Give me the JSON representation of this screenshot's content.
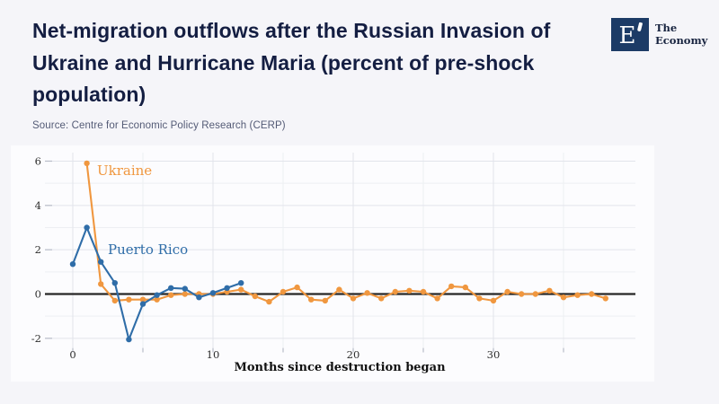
{
  "header": {
    "title": "Net-migration outflows after the Russian Invasion of Ukraine and Hurricane Maria (percent of pre-shock population)",
    "source": "Source: Centre for Economic Policy Research (CERP)",
    "logo": {
      "monogram": "E",
      "name": "The\nEconomy"
    }
  },
  "colors": {
    "title_text": "#141e42",
    "source_text": "#545b76",
    "logo_navy": "#1c3b66",
    "page_background": "#f5f5f9",
    "panel_background": "#fcfcfe",
    "ukraine_orange": "#F0973F",
    "puerto_rico_blue": "#2F6DA8",
    "zero_line_black": "#262626",
    "gridline_major": "#e2e4eb",
    "gridline_minor": "#edeff3",
    "tick_mark": "#b8bcc8",
    "tick_label": "#2e2e2e"
  },
  "chart_data": {
    "type": "line",
    "title": "",
    "xlabel": "Months since destruction began",
    "ylabel": "",
    "xlim": [
      -2,
      40
    ],
    "ylim": [
      -2.6,
      6.5
    ],
    "x_ticks_labeled": [
      0,
      10,
      20,
      30
    ],
    "x_ticks_minor": [
      5,
      15,
      25,
      35
    ],
    "y_ticks_labeled": [
      -2,
      0,
      2,
      4,
      6
    ],
    "y_gridlines_minor": [
      -1,
      1,
      3,
      5
    ],
    "grid": true,
    "zero_line": true,
    "legend_position": "inline-annotations",
    "series": [
      {
        "name": "Ukraine",
        "color": "#F0973F",
        "x": [
          1,
          2,
          3,
          4,
          5,
          6,
          7,
          8,
          9,
          10,
          11,
          12,
          13,
          14,
          15,
          16,
          17,
          18,
          19,
          20,
          21,
          22,
          23,
          24,
          25,
          26,
          27,
          28,
          29,
          30,
          31,
          32,
          33,
          34,
          35,
          36,
          37,
          38
        ],
        "values": [
          5.9,
          0.45,
          -0.3,
          -0.25,
          -0.25,
          -0.25,
          -0.05,
          0.0,
          0.0,
          0.0,
          0.1,
          0.2,
          -0.1,
          -0.35,
          0.1,
          0.3,
          -0.25,
          -0.3,
          0.2,
          -0.2,
          0.05,
          -0.2,
          0.1,
          0.15,
          0.1,
          -0.2,
          0.35,
          0.3,
          -0.2,
          -0.3,
          0.1,
          0.0,
          0.0,
          0.15,
          -0.15,
          -0.05,
          0.0,
          -0.2
        ]
      },
      {
        "name": "Puerto Rico",
        "color": "#2F6DA8",
        "x": [
          0,
          1,
          2,
          3,
          4,
          5,
          6,
          7,
          8,
          9,
          10,
          11,
          12
        ],
        "values": [
          1.35,
          3.0,
          1.45,
          0.5,
          -2.05,
          -0.45,
          -0.05,
          0.27,
          0.24,
          -0.15,
          0.05,
          0.27,
          0.5
        ]
      }
    ]
  }
}
